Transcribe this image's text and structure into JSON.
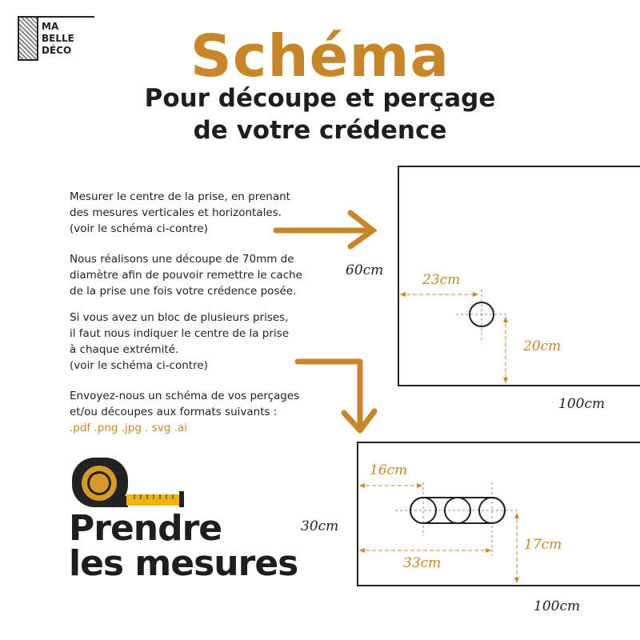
{
  "logo": {
    "lines": [
      "MA",
      "BELLE",
      "DÉCO"
    ]
  },
  "title": "Schéma",
  "subtitle": [
    "Pour découpe et perçage",
    "de votre crédence"
  ],
  "paragraphs": [
    [
      "Mesurer le centre de la prise, en prenant",
      "des mesures verticales et horizontales.",
      "(voir le schéma ci-contre)"
    ],
    [
      "Nous réalisons une découpe de 70mm de",
      "diamètre afin de pouvoir remettre le cache",
      "de la prise une fois votre crédence posée."
    ],
    [
      "Si vous avez un bloc de plusieurs prises,",
      "il faut nous indiquer le centre de la prise",
      "à chaque extrémité.",
      "(voir le schéma ci-contre)"
    ],
    [
      "Envoyez-nous un schéma de vos perçages",
      "et/ou découpes aux formats suivants :"
    ]
  ],
  "formats": ".pdf .png .jpg . svg .ai",
  "cta": [
    "Prendre",
    "les mesures"
  ],
  "diagram1": {
    "height": "60cm",
    "width": "100cm",
    "horizontal": "23cm",
    "vertical": "20cm"
  },
  "diagram2": {
    "height": "30cm",
    "width": "100cm",
    "horizontal1": "16cm",
    "horizontal2": "33cm",
    "vertical": "17cm"
  },
  "colors": {
    "accent": "#c8862a",
    "text": "#1e1e1e"
  }
}
